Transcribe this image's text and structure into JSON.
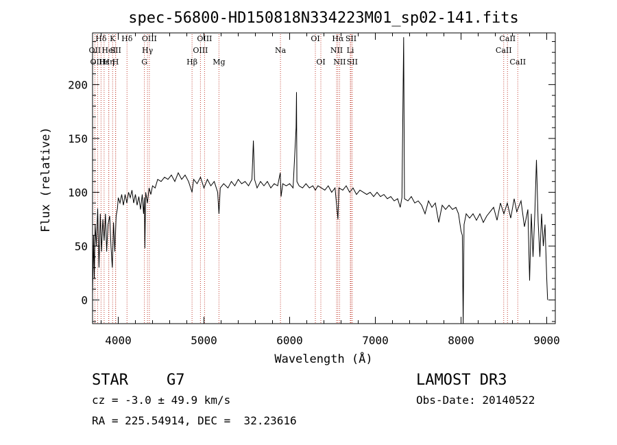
{
  "chart_data": {
    "type": "line",
    "title": "spec-56800-HD150818N334223M01_sp02-141.fits",
    "xlabel": "Wavelength (Å)",
    "ylabel": "Flux (relative)",
    "xlim": [
      3700,
      9100
    ],
    "ylim": [
      -22,
      248
    ],
    "xticks": [
      4000,
      5000,
      6000,
      7000,
      8000,
      9000
    ],
    "yticks": [
      0,
      50,
      100,
      150,
      200
    ],
    "lines": [
      {
        "label": "Hδ",
        "x": 3799,
        "row": 0
      },
      {
        "label": "OII",
        "x": 3727,
        "row": 1
      },
      {
        "label": "OIII",
        "x": 3760,
        "row": 2
      },
      {
        "label": "Hε",
        "x": 3835,
        "row": 2
      },
      {
        "label": "HeI",
        "x": 3889,
        "row": 1
      },
      {
        "label": "K",
        "x": 3934,
        "row": 0
      },
      {
        "label": "SII",
        "x": 3970,
        "row": 1
      },
      {
        "label": "Hη",
        "x": 3889,
        "row": 2
      },
      {
        "label": "H",
        "x": 3968,
        "row": 2
      },
      {
        "label": "Hδ",
        "x": 4102,
        "row": 0
      },
      {
        "label": "OIII",
        "x": 4363,
        "row": 0
      },
      {
        "label": "Hγ",
        "x": 4341,
        "row": 1
      },
      {
        "label": "G",
        "x": 4305,
        "row": 2
      },
      {
        "label": "OIII",
        "x": 5007,
        "row": 0
      },
      {
        "label": "OIII",
        "x": 4959,
        "row": 1
      },
      {
        "label": "Hβ",
        "x": 4861,
        "row": 2
      },
      {
        "label": "Mg",
        "x": 5175,
        "row": 2
      },
      {
        "label": "Na",
        "x": 5893,
        "row": 1
      },
      {
        "label": "OI",
        "x": 6300,
        "row": 0
      },
      {
        "label": "OI",
        "x": 6364,
        "row": 2
      },
      {
        "label": "Hα",
        "x": 6563,
        "row": 0
      },
      {
        "label": "SII",
        "x": 6716,
        "row": 0
      },
      {
        "label": "NII",
        "x": 6548,
        "row": 1
      },
      {
        "label": "Li",
        "x": 6708,
        "row": 1
      },
      {
        "label": "NII",
        "x": 6583,
        "row": 2
      },
      {
        "label": "SII",
        "x": 6731,
        "row": 2
      },
      {
        "label": "CaII",
        "x": 8542,
        "row": 0
      },
      {
        "label": "CaII",
        "x": 8498,
        "row": 1
      },
      {
        "label": "CaII",
        "x": 8662,
        "row": 2
      }
    ],
    "series": [
      {
        "name": "spectrum",
        "points": [
          [
            3700,
            5
          ],
          [
            3712,
            60
          ],
          [
            3720,
            20
          ],
          [
            3730,
            70
          ],
          [
            3745,
            50
          ],
          [
            3760,
            85
          ],
          [
            3775,
            30
          ],
          [
            3790,
            80
          ],
          [
            3805,
            45
          ],
          [
            3820,
            75
          ],
          [
            3835,
            55
          ],
          [
            3850,
            80
          ],
          [
            3865,
            45
          ],
          [
            3880,
            70
          ],
          [
            3900,
            78
          ],
          [
            3915,
            50
          ],
          [
            3930,
            30
          ],
          [
            3945,
            72
          ],
          [
            3960,
            45
          ],
          [
            3975,
            78
          ],
          [
            3990,
            85
          ],
          [
            4000,
            95
          ],
          [
            4020,
            90
          ],
          [
            4040,
            98
          ],
          [
            4060,
            88
          ],
          [
            4080,
            98
          ],
          [
            4100,
            90
          ],
          [
            4120,
            100
          ],
          [
            4140,
            95
          ],
          [
            4160,
            102
          ],
          [
            4180,
            90
          ],
          [
            4200,
            98
          ],
          [
            4220,
            88
          ],
          [
            4240,
            96
          ],
          [
            4260,
            84
          ],
          [
            4280,
            98
          ],
          [
            4295,
            80
          ],
          [
            4305,
            95
          ],
          [
            4310,
            48
          ],
          [
            4320,
            100
          ],
          [
            4340,
            90
          ],
          [
            4360,
            104
          ],
          [
            4380,
            98
          ],
          [
            4400,
            106
          ],
          [
            4430,
            104
          ],
          [
            4460,
            112
          ],
          [
            4500,
            110
          ],
          [
            4540,
            114
          ],
          [
            4580,
            112
          ],
          [
            4620,
            116
          ],
          [
            4660,
            110
          ],
          [
            4700,
            118
          ],
          [
            4740,
            112
          ],
          [
            4780,
            116
          ],
          [
            4820,
            110
          ],
          [
            4861,
            100
          ],
          [
            4880,
            112
          ],
          [
            4920,
            108
          ],
          [
            4960,
            114
          ],
          [
            5000,
            104
          ],
          [
            5040,
            112
          ],
          [
            5080,
            106
          ],
          [
            5120,
            110
          ],
          [
            5160,
            100
          ],
          [
            5175,
            80
          ],
          [
            5190,
            104
          ],
          [
            5230,
            108
          ],
          [
            5280,
            104
          ],
          [
            5320,
            110
          ],
          [
            5360,
            106
          ],
          [
            5400,
            112
          ],
          [
            5440,
            108
          ],
          [
            5480,
            110
          ],
          [
            5520,
            106
          ],
          [
            5560,
            112
          ],
          [
            5577,
            148
          ],
          [
            5590,
            112
          ],
          [
            5620,
            104
          ],
          [
            5660,
            110
          ],
          [
            5700,
            106
          ],
          [
            5740,
            110
          ],
          [
            5780,
            104
          ],
          [
            5820,
            108
          ],
          [
            5860,
            106
          ],
          [
            5890,
            118
          ],
          [
            5900,
            96
          ],
          [
            5920,
            108
          ],
          [
            5960,
            106
          ],
          [
            6000,
            108
          ],
          [
            6040,
            104
          ],
          [
            6075,
            160
          ],
          [
            6080,
            193
          ],
          [
            6085,
            110
          ],
          [
            6110,
            106
          ],
          [
            6150,
            104
          ],
          [
            6190,
            108
          ],
          [
            6230,
            104
          ],
          [
            6270,
            106
          ],
          [
            6300,
            102
          ],
          [
            6330,
            106
          ],
          [
            6370,
            104
          ],
          [
            6410,
            102
          ],
          [
            6450,
            106
          ],
          [
            6490,
            100
          ],
          [
            6530,
            104
          ],
          [
            6563,
            75
          ],
          [
            6575,
            104
          ],
          [
            6620,
            102
          ],
          [
            6660,
            106
          ],
          [
            6700,
            100
          ],
          [
            6740,
            104
          ],
          [
            6780,
            98
          ],
          [
            6820,
            102
          ],
          [
            6860,
            100
          ],
          [
            6900,
            98
          ],
          [
            6940,
            100
          ],
          [
            6980,
            96
          ],
          [
            7020,
            100
          ],
          [
            7060,
            96
          ],
          [
            7100,
            98
          ],
          [
            7140,
            94
          ],
          [
            7180,
            96
          ],
          [
            7220,
            92
          ],
          [
            7260,
            94
          ],
          [
            7290,
            86
          ],
          [
            7310,
            95
          ],
          [
            7330,
            244
          ],
          [
            7340,
            94
          ],
          [
            7380,
            92
          ],
          [
            7420,
            96
          ],
          [
            7460,
            90
          ],
          [
            7500,
            92
          ],
          [
            7540,
            88
          ],
          [
            7580,
            80
          ],
          [
            7620,
            92
          ],
          [
            7660,
            86
          ],
          [
            7700,
            90
          ],
          [
            7740,
            72
          ],
          [
            7780,
            88
          ],
          [
            7820,
            84
          ],
          [
            7860,
            88
          ],
          [
            7900,
            84
          ],
          [
            7940,
            86
          ],
          [
            7970,
            80
          ],
          [
            8000,
            64
          ],
          [
            8015,
            60
          ],
          [
            8025,
            -22
          ],
          [
            8035,
            70
          ],
          [
            8060,
            80
          ],
          [
            8100,
            76
          ],
          [
            8140,
            80
          ],
          [
            8180,
            74
          ],
          [
            8220,
            80
          ],
          [
            8260,
            72
          ],
          [
            8300,
            78
          ],
          [
            8340,
            82
          ],
          [
            8380,
            86
          ],
          [
            8420,
            74
          ],
          [
            8460,
            90
          ],
          [
            8500,
            80
          ],
          [
            8540,
            90
          ],
          [
            8580,
            76
          ],
          [
            8620,
            94
          ],
          [
            8650,
            82
          ],
          [
            8700,
            92
          ],
          [
            8740,
            68
          ],
          [
            8780,
            84
          ],
          [
            8800,
            18
          ],
          [
            8820,
            80
          ],
          [
            8840,
            40
          ],
          [
            8860,
            78
          ],
          [
            8880,
            130
          ],
          [
            8900,
            72
          ],
          [
            8920,
            40
          ],
          [
            8940,
            80
          ],
          [
            8960,
            50
          ],
          [
            8980,
            70
          ],
          [
            9000,
            20
          ],
          [
            9010,
            0
          ]
        ]
      }
    ]
  },
  "info": {
    "object_class": "STAR",
    "subclass": "G7",
    "survey": "LAMOST DR3",
    "redshift": "cz = -3.0 ± 49.9 km/s",
    "obs_date": "Obs-Date: 20140522",
    "coords": "RA = 225.54914, DEC =  32.23616"
  }
}
